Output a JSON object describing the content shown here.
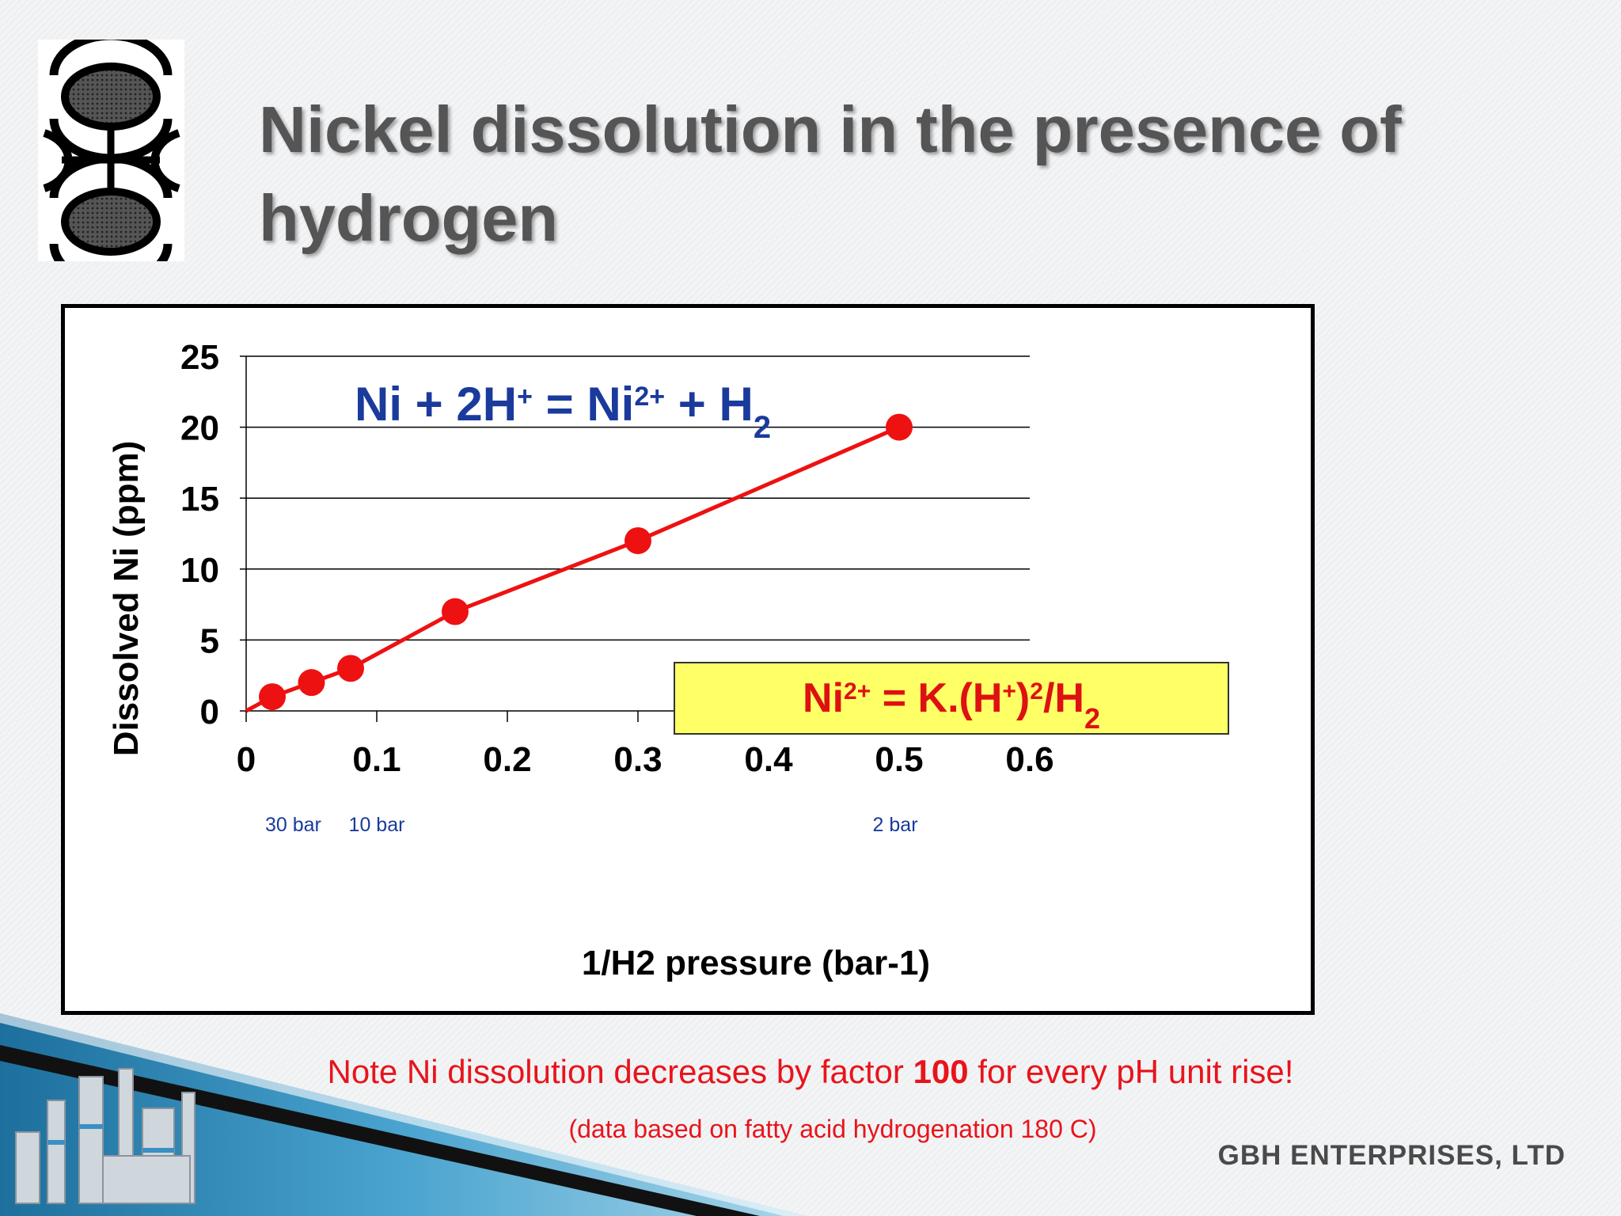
{
  "slide": {
    "title": "Nickel dissolution in the presence of hydrogen",
    "note_pre": "Note Ni dissolution decreases by factor ",
    "note_bold": "100",
    "note_post": " for every pH unit rise!",
    "subnote": "(data based on fatty acid hydrogenation 180 C)",
    "company": "GBH ENTERPRISES, LTD"
  },
  "chart_data": {
    "type": "line",
    "title": "",
    "xlabel": "1/H2 pressure (bar-1)",
    "ylabel": "Dissolved Ni (ppm)",
    "xlim": [
      0,
      0.6
    ],
    "ylim": [
      0,
      25
    ],
    "x_ticks": [
      "0",
      "0.1",
      "0.2",
      "0.3",
      "0.4",
      "0.5",
      "0.6"
    ],
    "y_ticks": [
      "0",
      "5",
      "10",
      "15",
      "20",
      "25"
    ],
    "grid": true,
    "series": [
      {
        "color": "#ee1111",
        "x": [
          0,
          0.02,
          0.05,
          0.08,
          0.16,
          0.3,
          0.5
        ],
        "y": [
          0,
          1,
          2,
          3,
          7,
          12,
          20
        ],
        "markers": [
          false,
          true,
          true,
          true,
          true,
          true,
          true
        ]
      }
    ],
    "pressure_labels": [
      {
        "x": 0.036,
        "text": "30 bar"
      },
      {
        "x": 0.1,
        "text": "10 bar"
      },
      {
        "x": 0.497,
        "text": "2 bar"
      }
    ],
    "annotations": {
      "reaction": "Ni + 2H+ = Ni2+ + H2",
      "equilibrium": "Ni2+ = K.(H+)2/H2"
    },
    "colors": {
      "reaction_text": "#1a3a9c",
      "equilibrium_text": "#dd1111",
      "equilibrium_box": "#ffff66"
    }
  }
}
